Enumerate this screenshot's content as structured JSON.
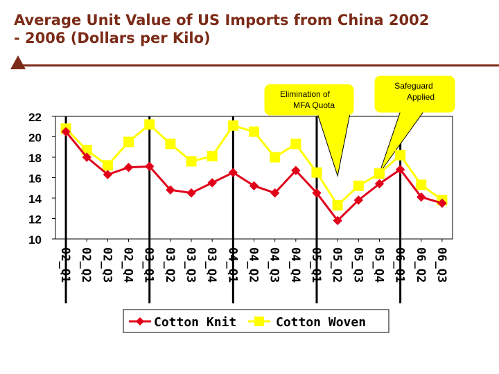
{
  "page": {
    "title_line1": "Average Unit Value of US Imports from China 2002",
    "title_line2": "- 2006 (Dollars per Kilo)"
  },
  "chart_data": {
    "type": "line",
    "title": "Average Unit Value of US Imports from China 2002 - 2006 (Dollars per Kilo)",
    "xlabel": "",
    "ylabel": "",
    "categories": [
      "02_Q1",
      "02_Q2",
      "02_Q3",
      "02_Q4",
      "03_Q1",
      "03_Q2",
      "03_Q3",
      "03_Q4",
      "04_Q1",
      "04_Q2",
      "04_Q3",
      "04_Q4",
      "05_Q1",
      "05_Q2",
      "05_Q3",
      "05_Q4",
      "06_Q1",
      "06_Q2",
      "06_Q3"
    ],
    "ylim": [
      10,
      22
    ],
    "yticks": [
      10,
      12,
      14,
      16,
      18,
      20,
      22
    ],
    "series": [
      {
        "name": "Cotton Knit",
        "color": "#e0001a",
        "marker": "diamond",
        "values": [
          20.5,
          18.0,
          16.3,
          17.0,
          17.1,
          14.8,
          14.5,
          15.5,
          16.5,
          15.2,
          14.5,
          16.7,
          14.5,
          11.8,
          13.8,
          15.4,
          16.8,
          14.1,
          13.5
        ]
      },
      {
        "name": "Cotton Woven",
        "color": "#ffff00",
        "marker": "square",
        "values": [
          20.8,
          18.7,
          17.2,
          19.5,
          21.2,
          19.3,
          17.6,
          18.1,
          21.1,
          20.5,
          18.0,
          19.3,
          16.5,
          13.3,
          15.2,
          16.4,
          18.2,
          15.3,
          13.8
        ]
      }
    ],
    "grid": "vertical lines at 02_Q1, 03_Q1, 04_Q1, 05_Q1, 06_Q1",
    "legend": "bottom",
    "annotations": [
      {
        "text_line1": "Elimination of",
        "text_line2": "MFA Quota",
        "target": "05_Q2",
        "color": "#ffff00"
      },
      {
        "text_line1": "Safeguard",
        "text_line2": "Applied",
        "target": "05_Q4",
        "color": "#ffff00"
      }
    ]
  }
}
